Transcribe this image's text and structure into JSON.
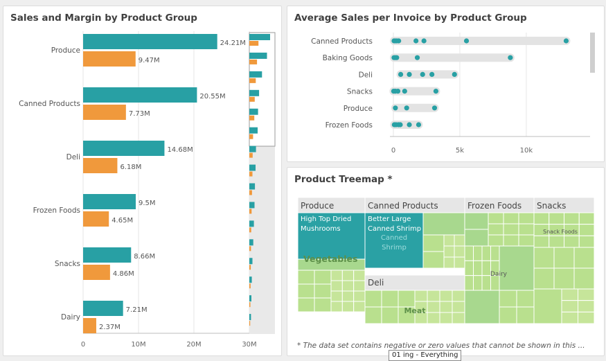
{
  "panels": {
    "sales_margin": {
      "title": "Sales and Margin by Product Group"
    },
    "avg_sales": {
      "title": "Average Sales per Invoice by Product Group"
    },
    "treemap": {
      "title": "Product Treemap *",
      "footnote": "* The data set contains negative or zero values that cannot be shown in this ..."
    }
  },
  "tooltip": {
    "text": "01 ing - Everything"
  },
  "colors": {
    "sales": "#28a0a4",
    "margin": "#f0993c",
    "grid": "#e4e4e4",
    "track": "#e3e3e3"
  },
  "chart_data": [
    {
      "type": "bar",
      "title": "Sales and Margin by Product Group",
      "orientation": "horizontal",
      "categories": [
        "Produce",
        "Canned Products",
        "Deli",
        "Frozen Foods",
        "Snacks",
        "Dairy"
      ],
      "series": [
        {
          "values": [
            24.21,
            20.55,
            14.68,
            9.5,
            8.66,
            7.21
          ],
          "labels": [
            "24.21M",
            "20.55M",
            "14.68M",
            "9.5M",
            "8.66M",
            "7.21M"
          ],
          "color": "#28a0a4"
        },
        {
          "values": [
            9.47,
            7.73,
            6.18,
            4.65,
            4.86,
            2.37
          ],
          "labels": [
            "9.47M",
            "7.73M",
            "6.18M",
            "4.65M",
            "4.86M",
            "2.37M"
          ],
          "color": "#f0993c"
        }
      ],
      "xlim": [
        0,
        30
      ],
      "ticks": [
        "0",
        "10M",
        "20M",
        "30M"
      ],
      "grid": true,
      "minimap": {
        "sales": [
          1.0,
          0.85,
          0.61,
          0.47,
          0.42,
          0.4,
          0.32,
          0.3,
          0.27,
          0.25,
          0.22,
          0.19,
          0.15,
          0.12,
          0.1,
          0.08
        ],
        "margin": [
          0.44,
          0.37,
          0.31,
          0.26,
          0.24,
          0.18,
          0.16,
          0.15,
          0.13,
          0.11,
          0.09,
          0.08,
          0.07,
          0.06,
          0.05,
          0.04
        ]
      }
    },
    {
      "type": "scatter",
      "title": "Average Sales per Invoice by Product Group",
      "categories": [
        "Canned Products",
        "Baking Goods",
        "Deli",
        "Snacks",
        "Produce",
        "Frozen Foods"
      ],
      "points": [
        [
          50,
          150,
          250,
          400,
          1700,
          2300,
          5500,
          13000
        ],
        [
          50,
          150,
          250,
          1800,
          8800
        ],
        [
          550,
          1200,
          2200,
          2900,
          4600
        ],
        [
          20,
          150,
          340,
          850,
          3200
        ],
        [
          150,
          1000,
          3100
        ],
        [
          70,
          200,
          380,
          520,
          1200,
          1900
        ]
      ],
      "xlim": [
        0,
        14800
      ],
      "ticks": [
        {
          "value": 0,
          "label": "0"
        },
        {
          "value": 5000,
          "label": "5k"
        },
        {
          "value": 10000,
          "label": "10k"
        }
      ]
    }
  ],
  "treemap": {
    "groups": [
      {
        "name": "Produce"
      },
      {
        "name": "Canned Products"
      },
      {
        "name": "Frozen Foods"
      },
      {
        "name": "Snacks"
      },
      {
        "name": "Deli"
      }
    ],
    "labels": {
      "produce_top": "High Top Dried Mushrooms",
      "produce_veg": "Vegetables",
      "canned_top": "Better Large Canned Shrimp",
      "canned_sub": "Canned Shrimp",
      "frozen_dairy": "Dairy",
      "snacks_sub": "Snack Foods",
      "deli_meat": "Meat"
    }
  }
}
